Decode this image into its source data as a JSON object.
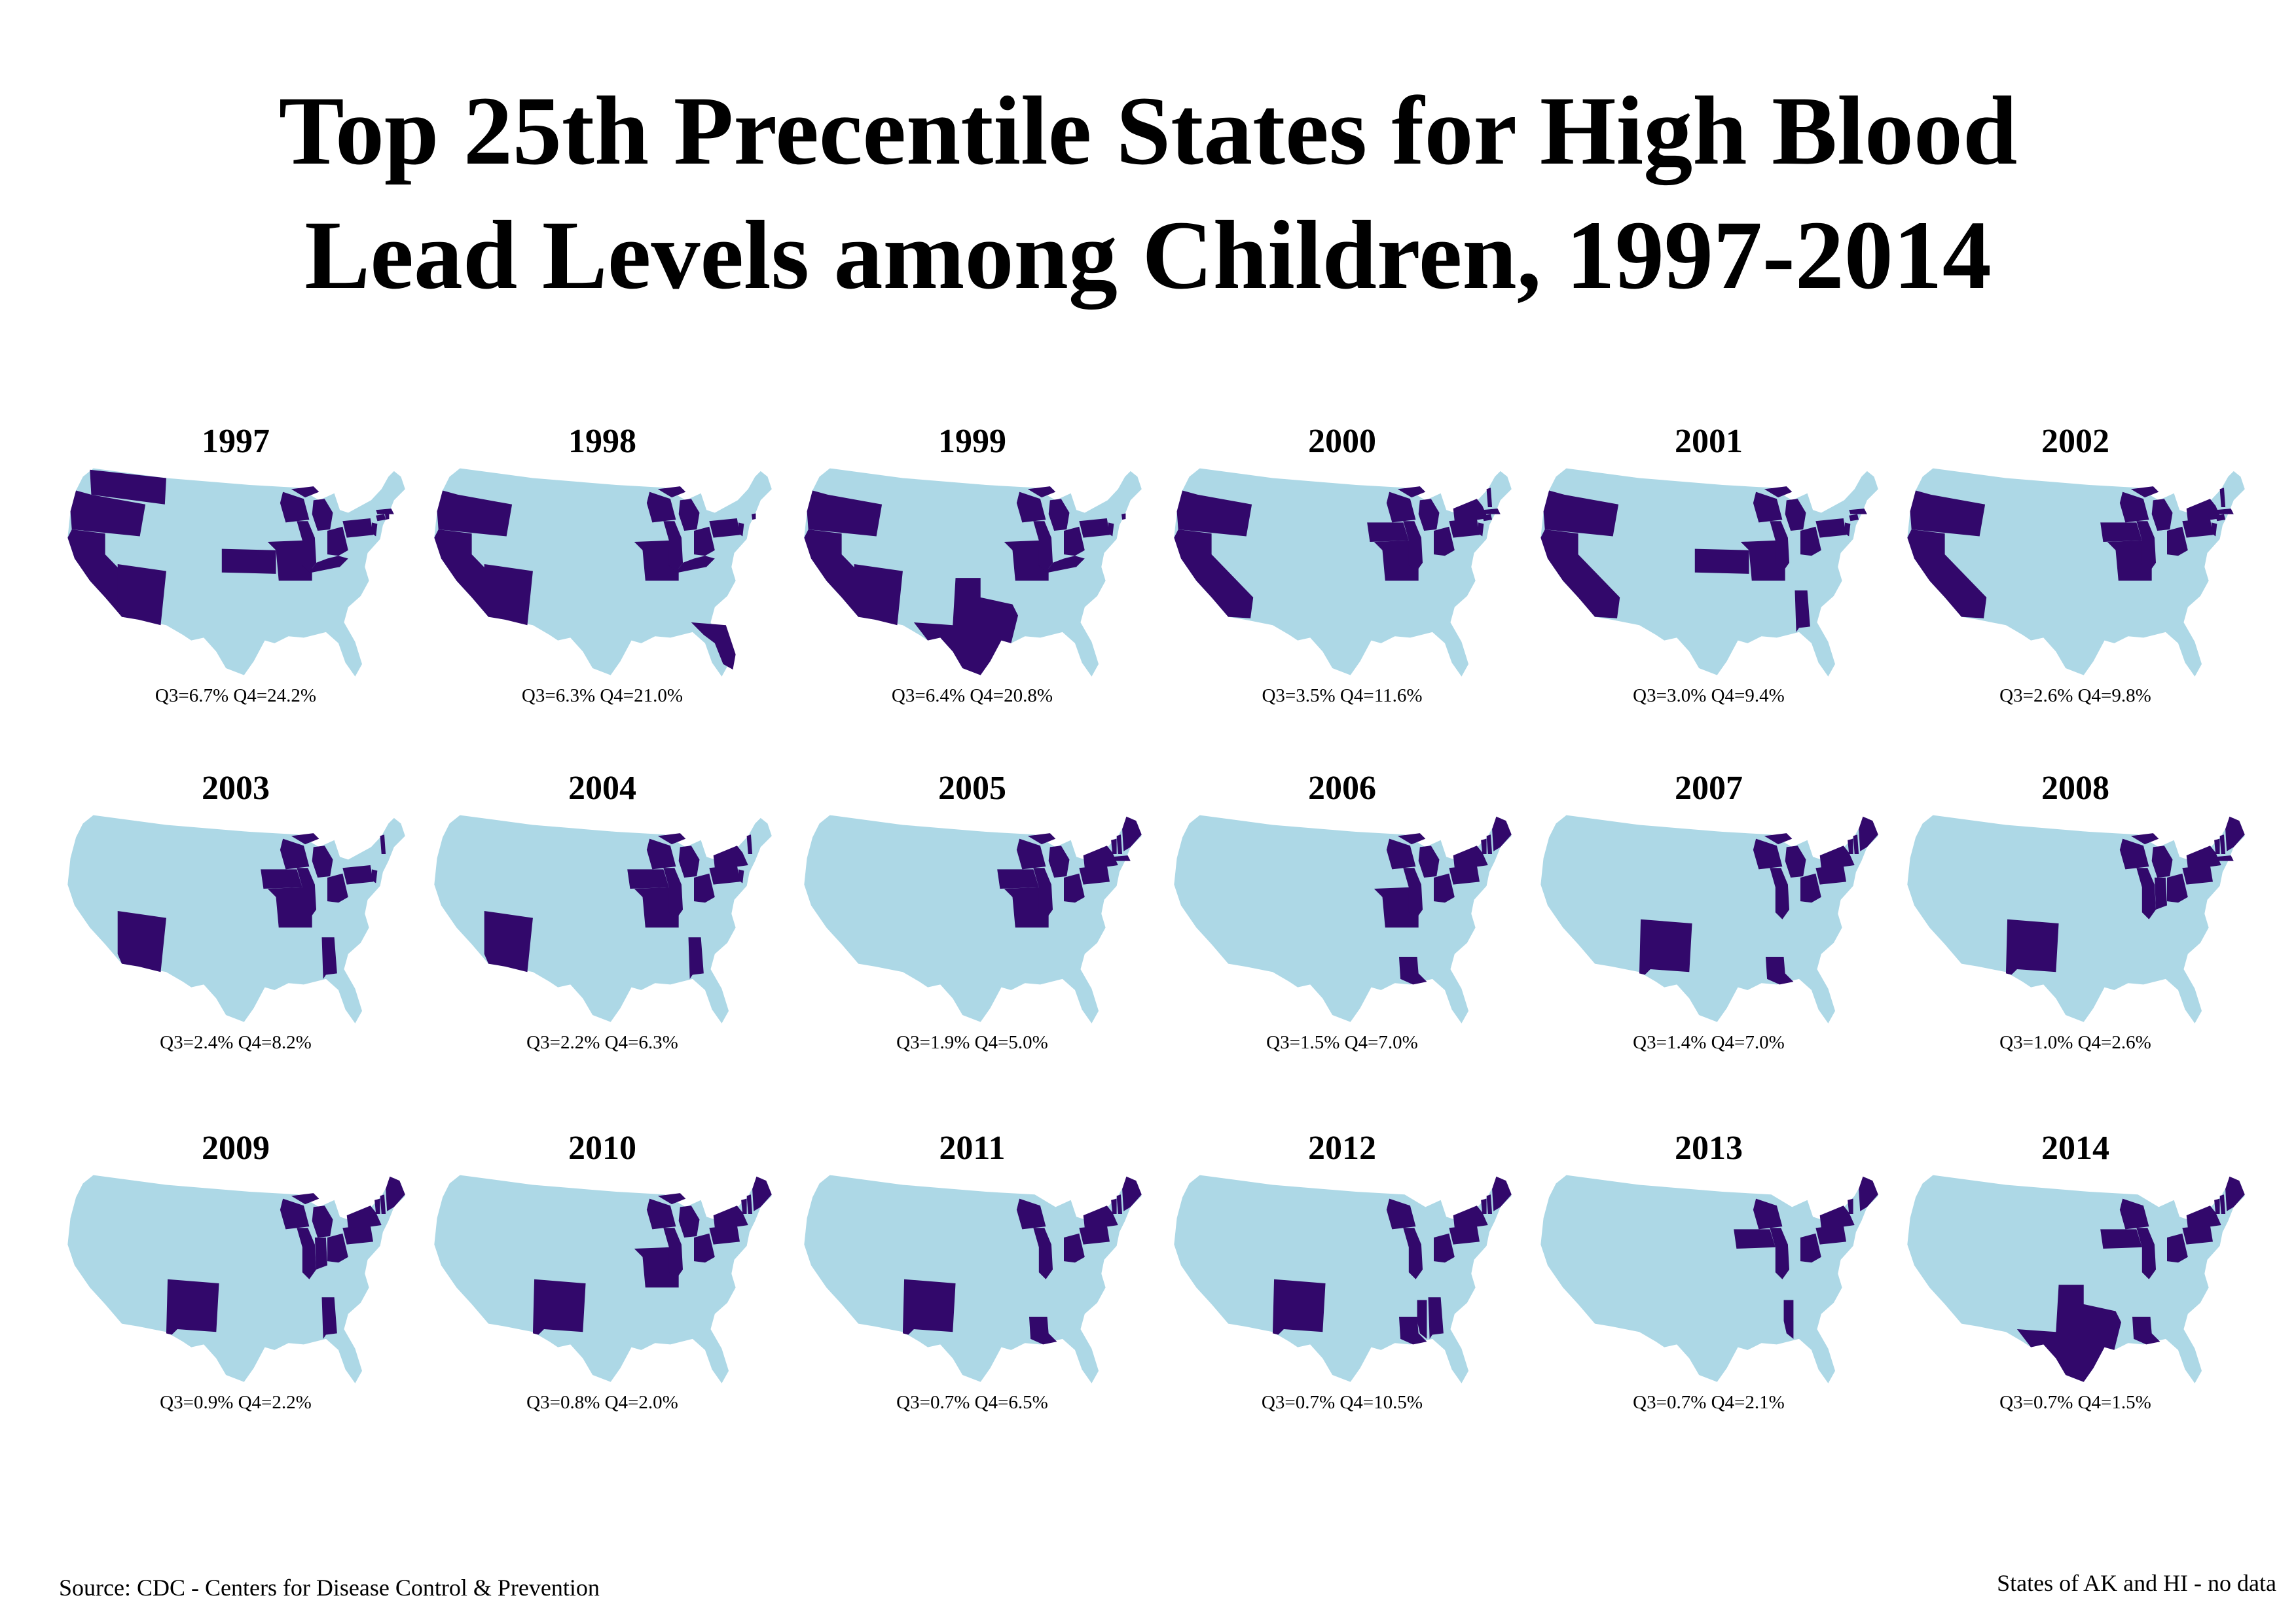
{
  "title_line1": "Top 25th Precentile States for High Blood",
  "title_line2": "Lead Levels among Children, 1997-2014",
  "source": "Source: CDC - Centers for Disease Control & Prevention",
  "note": "States of AK and HI - no data",
  "colors": {
    "base": "#add8e6",
    "highlight": "#32086b",
    "text": "#000000"
  },
  "maps": [
    {
      "year": "1997",
      "caption": "Q3=6.7% Q4=24.2%",
      "highlighted": [
        "WA",
        "OR",
        "CA",
        "AZ",
        "KS",
        "MO",
        "IL",
        "WI",
        "MI",
        "OH",
        "KY",
        "PA",
        "NJ",
        "CT",
        "RI",
        "MA"
      ]
    },
    {
      "year": "1998",
      "caption": "Q3=6.3% Q4=21.0%",
      "highlighted": [
        "OR",
        "CA",
        "AZ",
        "MO",
        "IL",
        "WI",
        "MI",
        "OH",
        "KY",
        "PA",
        "NJ",
        "RI",
        "FL"
      ]
    },
    {
      "year": "1999",
      "caption": "Q3=6.4% Q4=20.8%",
      "highlighted": [
        "OR",
        "CA",
        "AZ",
        "TX",
        "MO",
        "IL",
        "WI",
        "MI",
        "OH",
        "KY",
        "PA",
        "NJ",
        "RI"
      ]
    },
    {
      "year": "2000",
      "caption": "Q3=3.5% Q4=11.6%",
      "highlighted": [
        "OR",
        "CA",
        "IA",
        "MO",
        "IL",
        "WI",
        "MI",
        "OH",
        "PA",
        "NY",
        "NJ",
        "CT",
        "MA",
        "NH"
      ]
    },
    {
      "year": "2001",
      "caption": "Q3=3.0% Q4=9.4%",
      "highlighted": [
        "OR",
        "CA",
        "KS",
        "MO",
        "IL",
        "WI",
        "MI",
        "OH",
        "PA",
        "NJ",
        "CT",
        "MA",
        "AL"
      ]
    },
    {
      "year": "2002",
      "caption": "Q3=2.6% Q4=9.8%",
      "highlighted": [
        "OR",
        "CA",
        "IA",
        "MO",
        "IL",
        "WI",
        "MI",
        "OH",
        "PA",
        "NY",
        "NJ",
        "CT",
        "MA",
        "NH"
      ]
    },
    {
      "year": "2003",
      "caption": "Q3=2.4% Q4=8.2%",
      "highlighted": [
        "AZ",
        "IA",
        "MO",
        "IL",
        "WI",
        "MI",
        "OH",
        "PA",
        "NJ",
        "NH",
        "AL"
      ]
    },
    {
      "year": "2004",
      "caption": "Q3=2.2% Q4=6.3%",
      "highlighted": [
        "AZ",
        "IA",
        "MO",
        "IL",
        "WI",
        "MI",
        "OH",
        "PA",
        "NY",
        "NJ",
        "NH",
        "AL"
      ]
    },
    {
      "year": "2005",
      "caption": "Q3=1.9% Q4=5.0%",
      "highlighted": [
        "IA",
        "MO",
        "IL",
        "WI",
        "MI",
        "OH",
        "PA",
        "NY",
        "VT",
        "NH",
        "ME",
        "MA"
      ]
    },
    {
      "year": "2006",
      "caption": "Q3=1.5% Q4=7.0%",
      "highlighted": [
        "MO",
        "IL",
        "WI",
        "MI",
        "OH",
        "PA",
        "NY",
        "VT",
        "NH",
        "ME",
        "LA"
      ]
    },
    {
      "year": "2007",
      "caption": "Q3=1.4% Q4=7.0%",
      "highlighted": [
        "NM",
        "IL",
        "WI",
        "MI",
        "OH",
        "PA",
        "NY",
        "VT",
        "NH",
        "ME",
        "LA"
      ]
    },
    {
      "year": "2008",
      "caption": "Q3=1.0% Q4=2.6%",
      "highlighted": [
        "NM",
        "IL",
        "WI",
        "MI",
        "IN",
        "OH",
        "PA",
        "NY",
        "VT",
        "NH",
        "ME",
        "MA"
      ]
    },
    {
      "year": "2009",
      "caption": "Q3=0.9% Q4=2.2%",
      "highlighted": [
        "NM",
        "IL",
        "WI",
        "MI",
        "IN",
        "OH",
        "PA",
        "NY",
        "VT",
        "NH",
        "ME",
        "AL"
      ]
    },
    {
      "year": "2010",
      "caption": "Q3=0.8% Q4=2.0%",
      "highlighted": [
        "NM",
        "MO",
        "IL",
        "WI",
        "MI",
        "OH",
        "PA",
        "NY",
        "VT",
        "NH",
        "ME"
      ]
    },
    {
      "year": "2011",
      "caption": "Q3=0.7% Q4=6.5%",
      "highlighted": [
        "NM",
        "IL",
        "WI",
        "OH",
        "PA",
        "NY",
        "VT",
        "NH",
        "ME",
        "LA"
      ]
    },
    {
      "year": "2012",
      "caption": "Q3=0.7% Q4=10.5%",
      "highlighted": [
        "NM",
        "IL",
        "WI",
        "OH",
        "PA",
        "NY",
        "VT",
        "NH",
        "ME",
        "LA",
        "MS",
        "AL"
      ]
    },
    {
      "year": "2013",
      "caption": "Q3=0.7% Q4=2.1%",
      "highlighted": [
        "IA",
        "IL",
        "WI",
        "OH",
        "PA",
        "NY",
        "VT",
        "ME",
        "MS"
      ]
    },
    {
      "year": "2014",
      "caption": "Q3=0.7% Q4=1.5%",
      "highlighted": [
        "TX",
        "LA",
        "IA",
        "IL",
        "WI",
        "OH",
        "PA",
        "NY",
        "VT",
        "NH",
        "ME"
      ]
    }
  ]
}
